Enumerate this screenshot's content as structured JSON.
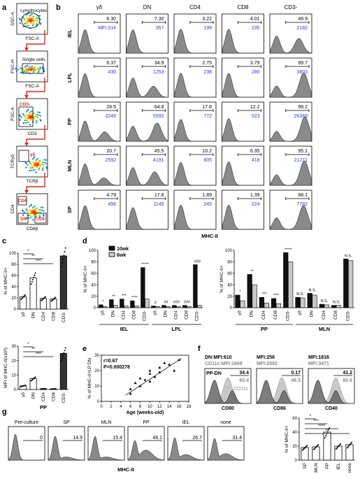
{
  "colors": {
    "accent_blue": "#1f3fd1",
    "gate_red": "#e8261b",
    "hist_fill": "#8a8a8a",
    "hist_light": "#c8c8c8"
  },
  "panel_letters": [
    "a",
    "b",
    "c",
    "d",
    "e",
    "f",
    "g"
  ],
  "a": {
    "plots": [
      {
        "ylabel": "SSC-A",
        "xlabel": "FSC-A",
        "gates": [
          "Lymphocytes"
        ]
      },
      {
        "ylabel": "FSC-H",
        "xlabel": "FSC-A",
        "gates": [
          "Single cells"
        ]
      },
      {
        "ylabel": "FSC-A",
        "xlabel": "CD3",
        "gates": [
          "CD3-"
        ]
      },
      {
        "ylabel": "TCRγδ",
        "xlabel": "TCRβ",
        "gates": [
          "γδ"
        ]
      },
      {
        "ylabel": "CD4",
        "xlabel": "CD8β",
        "gates": [
          "CD4",
          "DN",
          "CD8"
        ]
      }
    ]
  },
  "b": {
    "columns": [
      "γδ",
      "DN",
      "CD4",
      "CD8",
      "CD3-"
    ],
    "rows": [
      {
        "tissue": "IEL",
        "pct": [
          "6.30",
          "7.30",
          "3.22",
          "4.01",
          "49.9"
        ],
        "mfi": [
          "MFI:314",
          "357",
          "199",
          "235",
          "2182"
        ]
      },
      {
        "tissue": "LPL",
        "pct": [
          "6.37",
          "34.9",
          "2.75",
          "3.79",
          "89.7"
        ],
        "mfi": [
          "430",
          "1253",
          "238",
          "280",
          "3803"
        ]
      },
      {
        "tissue": "PP",
        "pct": [
          "28.5",
          "64.8",
          "17.6",
          "12.2",
          "99.2"
        ],
        "mfi": [
          "3246",
          "5592",
          "772",
          "523",
          "26369"
        ]
      },
      {
        "tissue": "MLN",
        "pct": [
          "20.7",
          "45.5",
          "10.2",
          "6.35",
          "95.1"
        ],
        "mfi": [
          "2592",
          "4191",
          "805",
          "418",
          "21271"
        ]
      },
      {
        "tissue": "SP",
        "pct": [
          "4.79",
          "17.8",
          "1.89",
          "1.39",
          "88.1"
        ],
        "mfi": [
          "456",
          "1145",
          "245",
          "224",
          "7782"
        ]
      }
    ],
    "xlabel": "MHC-II"
  },
  "c": {
    "top": {
      "ylabel": "% of MHC-II+",
      "categories": [
        "γδ",
        "DN",
        "CD4",
        "CD8",
        "CD3-"
      ],
      "values": [
        22,
        56,
        19,
        18,
        95
      ],
      "ylim": [
        0,
        100
      ],
      "yticks": [
        "0",
        "20",
        "40",
        "60",
        "80",
        "100"
      ],
      "sig": [
        "*",
        "**",
        "***"
      ]
    },
    "bottom": {
      "ylabel": "MFI of MHC-II(x10³)",
      "categories": [
        "γδ",
        "DN",
        "CD4",
        "CD8",
        "CD3-"
      ],
      "values": [
        2.5,
        7.5,
        0.5,
        0.4,
        25
      ],
      "ylim": [
        0,
        30
      ],
      "yticks": [
        "0",
        "10",
        "20",
        "30"
      ],
      "sig": [
        "*",
        "**",
        "***"
      ],
      "group": "PP"
    }
  },
  "d": {
    "ylabel": "% of MHC-II+",
    "legend": [
      "10wk",
      "6wk"
    ],
    "left_groups": [
      {
        "tissue": "IEL",
        "cats": [
          "γδ",
          "DN",
          "CD4",
          "CD8",
          "CD3-"
        ],
        "v10": [
          5,
          14,
          15,
          12,
          70
        ],
        "v6": [
          2,
          4,
          3,
          3,
          15
        ],
        "sig": [
          "*",
          "**",
          "***",
          "****",
          "*****"
        ]
      },
      {
        "tissue": "LPL",
        "cats": [
          "γδ",
          "DN",
          "CD4",
          "CD8",
          "CD3-"
        ],
        "v10": [
          3,
          4,
          4,
          4,
          75
        ],
        "v6": [
          2,
          2,
          2,
          2,
          4
        ],
        "sig": [
          "#",
          "##",
          "###",
          "###",
          "###"
        ]
      }
    ],
    "right_groups": [
      {
        "tissue": "PP",
        "cats": [
          "γδ",
          "DN",
          "CD4",
          "CD8",
          "CD3-"
        ],
        "v10": [
          22,
          58,
          18,
          16,
          96
        ],
        "v6": [
          12,
          40,
          8,
          7,
          80
        ],
        "sig": [
          "*",
          "**",
          "***",
          "****",
          "*****"
        ]
      },
      {
        "tissue": "MLN",
        "cats": [
          "γδ",
          "DN",
          "CD4",
          "CD8",
          "CD3-"
        ],
        "v10": [
          18,
          25,
          6,
          4,
          85
        ],
        "v6": [
          17,
          22,
          5,
          4,
          82
        ],
        "sig": [
          "N.S.",
          "N.S.",
          "N.S.",
          "N.S.",
          "N.S."
        ]
      }
    ],
    "ylim": [
      0,
      100
    ],
    "yticks": [
      "0",
      "20",
      "40",
      "60",
      "80",
      "100"
    ]
  },
  "e": {
    "ylabel": "% of MHC-II+LP DN",
    "xlabel": "Age (weeks-old)",
    "stat_r": "r=0.67",
    "stat_p": "P=0.000278",
    "xticks": [
      "0",
      "2",
      "4",
      "6",
      "8",
      "10",
      "12",
      "14",
      "16",
      "18"
    ],
    "yticks": [
      "0",
      "10",
      "20",
      "30"
    ],
    "xlim": [
      0,
      18
    ],
    "ylim": [
      0,
      30
    ],
    "x": [
      6,
      6,
      7,
      8,
      8,
      9,
      10,
      10,
      10,
      11,
      12,
      12,
      13,
      14,
      15,
      16
    ],
    "y": [
      5,
      8,
      12,
      10,
      15,
      14,
      20,
      18,
      13,
      16,
      22,
      19,
      25,
      24,
      20,
      27
    ]
  },
  "f": {
    "panels": [
      {
        "header1": "DN:MFI:610",
        "header2": "CD11c:MFI:1669",
        "label_inner": "PP-DN",
        "pct1": "34.4",
        "pct2": "60.4",
        "tag": "CD11c",
        "xlabel": "CD80"
      },
      {
        "header1": "MFI:256",
        "header2": "MFI:2592",
        "label_inner": "",
        "pct1": "0.17",
        "pct2": "46.5",
        "tag": "",
        "xlabel": "CD86"
      },
      {
        "header1": "MFI:1816",
        "header2": "MFI:3471",
        "label_inner": "",
        "pct1": "41.2",
        "pct2": "80.6",
        "tag": "",
        "xlabel": "CD40"
      }
    ]
  },
  "g": {
    "histos": [
      {
        "title": "Pre-culture",
        "pct": "0"
      },
      {
        "title": "SP",
        "pct": "14.9"
      },
      {
        "title": "MLN",
        "pct": "15.4"
      },
      {
        "title": "PP",
        "pct": "48.1"
      },
      {
        "title": "IEL",
        "pct": "26.7"
      },
      {
        "title": "none",
        "pct": "31.4"
      }
    ],
    "xlabel": "MHC-II",
    "bar": {
      "ylabel": "% of MHC-II+",
      "categories": [
        "SP",
        "MLN",
        "PP",
        "IEL",
        "none"
      ],
      "values": [
        18,
        19,
        40,
        20,
        22
      ],
      "ylim": [
        0,
        60
      ],
      "yticks": [
        "0",
        "20",
        "40",
        "60"
      ],
      "sig": [
        "*",
        "***",
        "****",
        "**"
      ]
    }
  }
}
